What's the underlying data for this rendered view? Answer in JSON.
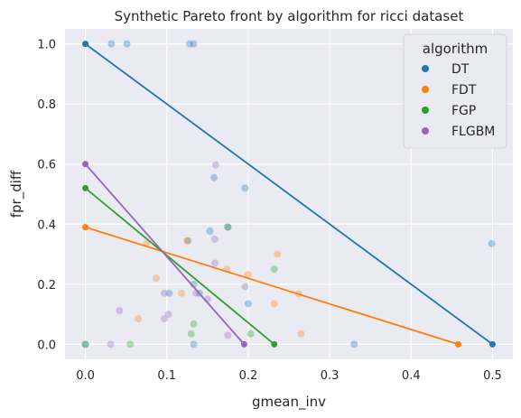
{
  "chart_data": {
    "type": "scatter",
    "title": "Synthetic Pareto front by algorithm for ricci dataset",
    "xlabel": "gmean_inv",
    "ylabel": "fpr_diff",
    "xlim": [
      -0.025,
      0.525
    ],
    "ylim": [
      -0.05,
      1.05
    ],
    "xticks": [
      0.0,
      0.1,
      0.2,
      0.3,
      0.4,
      0.5
    ],
    "xtick_labels": [
      "0.0",
      "0.1",
      "0.2",
      "0.3",
      "0.4",
      "0.5"
    ],
    "yticks": [
      0.0,
      0.2,
      0.4,
      0.6,
      0.8,
      1.0
    ],
    "ytick_labels": [
      "0.0",
      "0.2",
      "0.4",
      "0.6",
      "0.8",
      "1.0"
    ],
    "grid": true,
    "legend": {
      "title": "algorithm",
      "position": "top-right"
    },
    "series": [
      {
        "name": "DT",
        "color": "#1f77b4",
        "front": [
          [
            0.0,
            1.0
          ],
          [
            0.5,
            0.0
          ]
        ],
        "points": [
          [
            0.032,
            1.0
          ],
          [
            0.051,
            1.0
          ],
          [
            0.128,
            1.0
          ],
          [
            0.133,
            1.0
          ],
          [
            0.499,
            0.335
          ],
          [
            0.33,
            0.0
          ],
          [
            0.158,
            0.555
          ],
          [
            0.196,
            0.52
          ],
          [
            0.126,
            0.345
          ],
          [
            0.153,
            0.377
          ],
          [
            0.175,
            0.39
          ],
          [
            0.103,
            0.17
          ],
          [
            0.133,
            0.2
          ],
          [
            0.14,
            0.17
          ],
          [
            0.2,
            0.135
          ],
          [
            0.133,
            0.0
          ],
          [
            0.0,
            0.0
          ]
        ]
      },
      {
        "name": "FDT",
        "color": "#ff7f0e",
        "front": [
          [
            0.0,
            0.39
          ],
          [
            0.458,
            0.0
          ]
        ],
        "points": [
          [
            0.075,
            0.335
          ],
          [
            0.087,
            0.22
          ],
          [
            0.118,
            0.17
          ],
          [
            0.174,
            0.25
          ],
          [
            0.2,
            0.232
          ],
          [
            0.236,
            0.3
          ],
          [
            0.262,
            0.168
          ],
          [
            0.265,
            0.035
          ],
          [
            0.232,
            0.135
          ],
          [
            0.065,
            0.085
          ],
          [
            0.125,
            0.345
          ]
        ]
      },
      {
        "name": "FGP",
        "color": "#2ca02c",
        "front": [
          [
            0.0,
            0.52
          ],
          [
            0.232,
            0.0
          ]
        ],
        "points": [
          [
            0.055,
            0.0
          ],
          [
            0.13,
            0.035
          ],
          [
            0.133,
            0.068
          ],
          [
            0.203,
            0.035
          ],
          [
            0.232,
            0.25
          ],
          [
            0.175,
            0.39
          ],
          [
            0.0,
            0.0
          ]
        ]
      },
      {
        "name": "FLGBM",
        "color": "#9467bd",
        "front": [
          [
            0.0,
            0.6
          ],
          [
            0.195,
            0.0
          ]
        ],
        "points": [
          [
            0.042,
            0.112
          ],
          [
            0.097,
            0.085
          ],
          [
            0.102,
            0.1
          ],
          [
            0.097,
            0.17
          ],
          [
            0.136,
            0.17
          ],
          [
            0.16,
            0.597
          ],
          [
            0.159,
            0.35
          ],
          [
            0.159,
            0.27
          ],
          [
            0.196,
            0.192
          ],
          [
            0.175,
            0.03
          ],
          [
            0.031,
            0.0
          ],
          [
            0.15,
            0.15
          ]
        ]
      }
    ]
  }
}
